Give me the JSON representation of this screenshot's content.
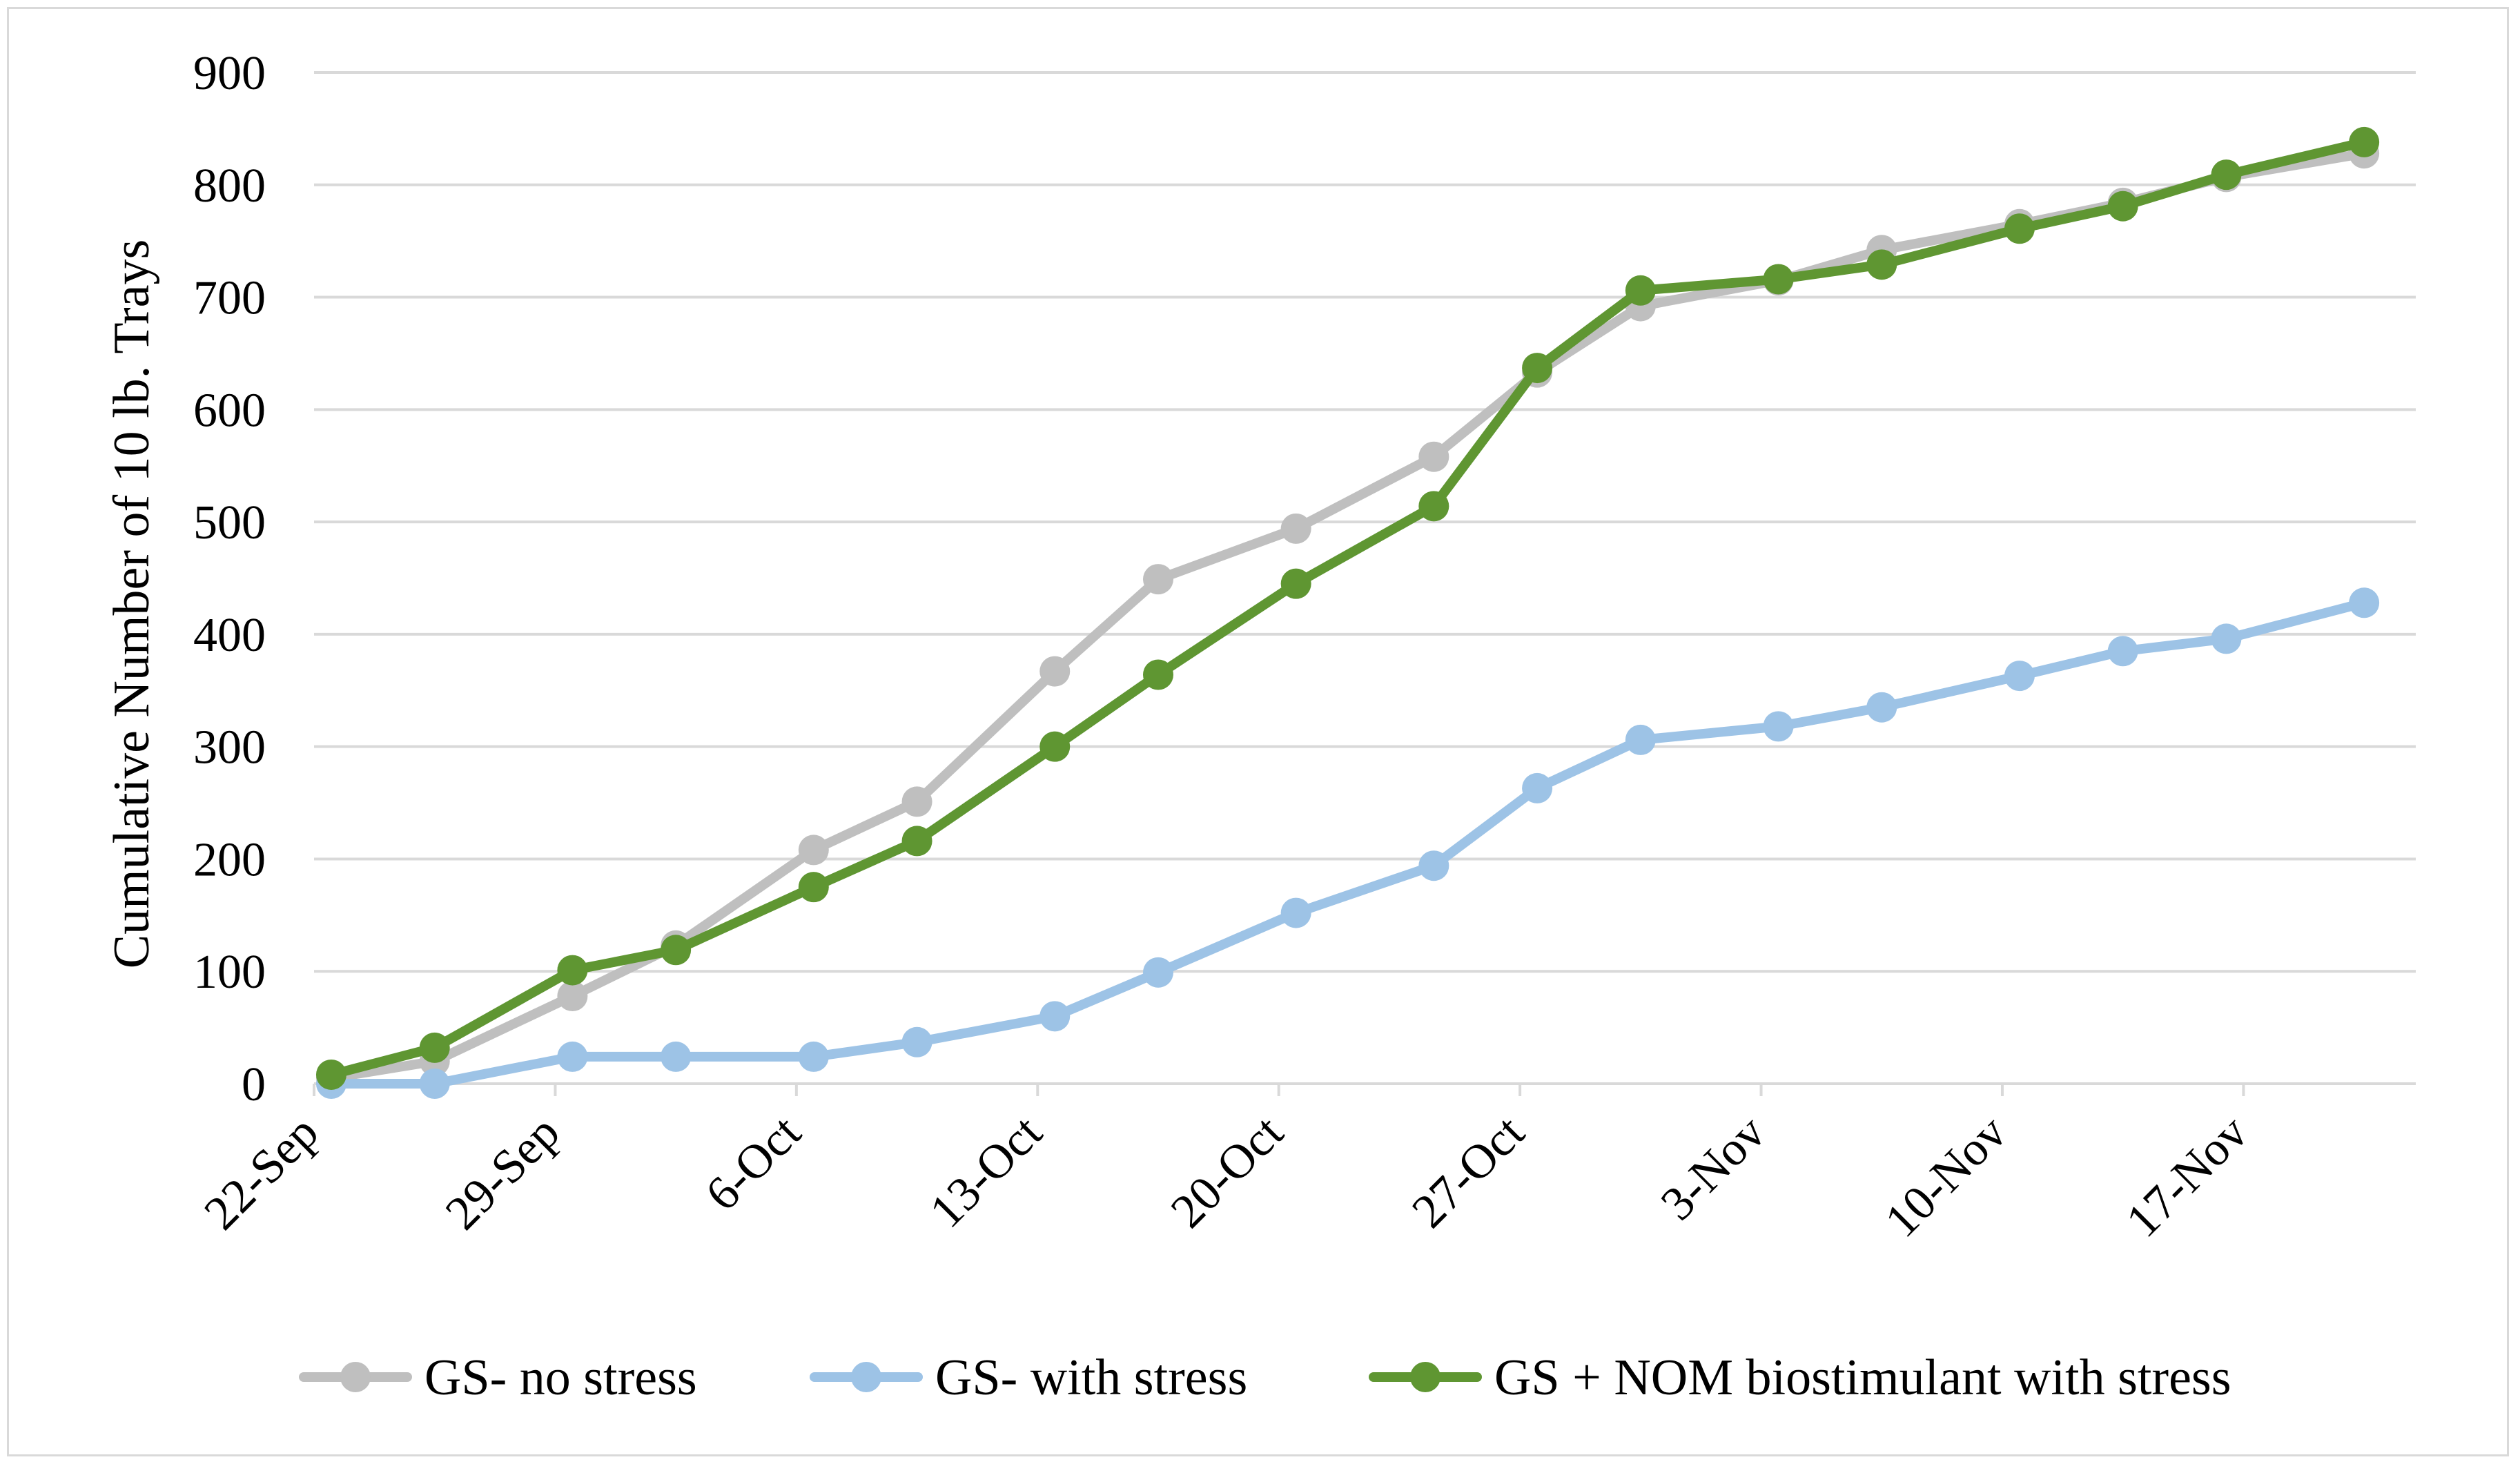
{
  "chart_data": {
    "type": "line",
    "title": "",
    "xlabel": "",
    "ylabel": "Cumulative Number of 10 lb. Trays",
    "ylim": [
      0,
      900
    ],
    "yticks": [
      "0",
      "100",
      "200",
      "300",
      "400",
      "500",
      "600",
      "700",
      "800",
      "900"
    ],
    "xlim_days": [
      0,
      61
    ],
    "xticks": [
      {
        "label": "22-Sep",
        "day": 0
      },
      {
        "label": "29-Sep",
        "day": 7
      },
      {
        "label": "6-Oct",
        "day": 14
      },
      {
        "label": "13-Oct",
        "day": 21
      },
      {
        "label": "20-Oct",
        "day": 28
      },
      {
        "label": "27-Oct",
        "day": 35
      },
      {
        "label": "3-Nov",
        "day": 42
      },
      {
        "label": "10-Nov",
        "day": 49
      },
      {
        "label": "17-Nov",
        "day": 56
      }
    ],
    "x_days": [
      0.5,
      3.5,
      7.5,
      10.5,
      14.5,
      17.5,
      21.5,
      24.5,
      28.5,
      32.5,
      35.5,
      38.5,
      42.5,
      45.5,
      49.5,
      52.5,
      55.5,
      59.5
    ],
    "series": [
      {
        "name": "GS- no stress",
        "color": "#bfbfbf",
        "values": [
          5,
          20,
          78,
          123,
          208,
          251,
          367,
          449,
          494,
          558,
          633,
          692,
          715,
          742,
          765,
          784,
          807,
          828
        ]
      },
      {
        "name": "GS- with stress",
        "color": "#9dc3e6",
        "values": [
          0,
          0,
          24,
          24,
          24,
          37,
          60,
          99,
          152,
          194,
          263,
          306,
          318,
          335,
          363,
          385,
          396,
          428
        ]
      },
      {
        "name": "GS + NOM biostimulant with stress",
        "color": "#5f9632",
        "values": [
          8,
          32,
          101,
          119,
          175,
          216,
          300,
          364,
          445,
          514,
          637,
          706,
          716,
          729,
          761,
          781,
          809,
          838
        ]
      }
    ],
    "grid": true,
    "legend": "bottom"
  }
}
